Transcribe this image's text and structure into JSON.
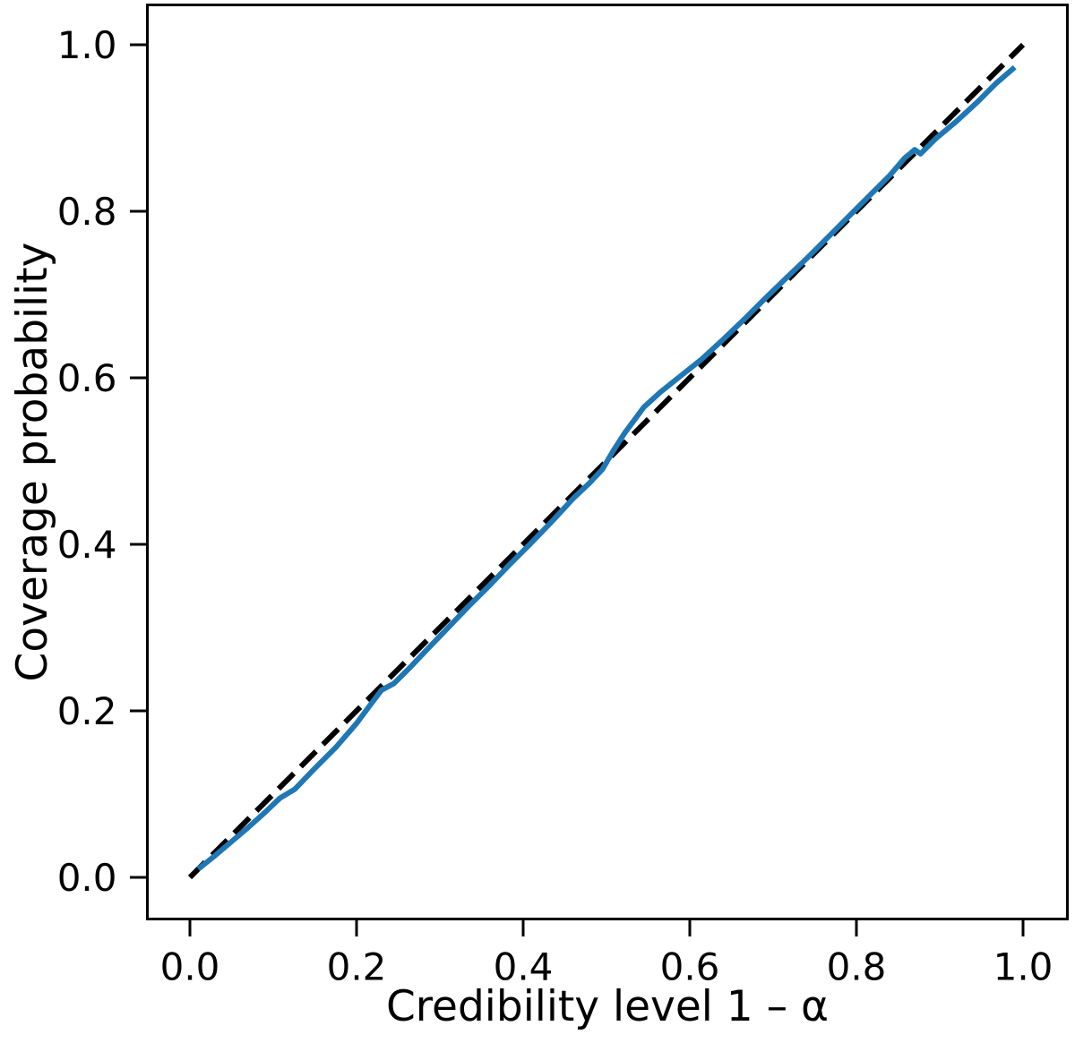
{
  "figure": {
    "background": "#ffffff",
    "axis_color": "#000000",
    "text_color": "#000000"
  },
  "chart_data": {
    "type": "line",
    "title": "",
    "xlabel": "Credibility level 1 – α",
    "ylabel": "Coverage probability",
    "xlim": [
      0.0,
      1.0
    ],
    "ylim": [
      0.0,
      1.0
    ],
    "grid": false,
    "legend": "none",
    "xticks": [
      {
        "value": 0.0,
        "label": "0.0"
      },
      {
        "value": 0.2,
        "label": "0.2"
      },
      {
        "value": 0.4,
        "label": "0.4"
      },
      {
        "value": 0.6,
        "label": "0.6"
      },
      {
        "value": 0.8,
        "label": "0.8"
      },
      {
        "value": 1.0,
        "label": "1.0"
      }
    ],
    "yticks": [
      {
        "value": 0.0,
        "label": "0.0"
      },
      {
        "value": 0.2,
        "label": "0.2"
      },
      {
        "value": 0.4,
        "label": "0.4"
      },
      {
        "value": 0.6,
        "label": "0.6"
      },
      {
        "value": 0.8,
        "label": "0.8"
      },
      {
        "value": 1.0,
        "label": "1.0"
      }
    ],
    "series": [
      {
        "name": "ideal-calibration-diagonal",
        "style": "dashed",
        "color": "#000000",
        "x": [
          0.0,
          1.0
        ],
        "y": [
          0.0,
          1.0
        ]
      },
      {
        "name": "empirical-coverage",
        "style": "solid",
        "color": "#1f77b4",
        "x": [
          0.01,
          0.03,
          0.05,
          0.07,
          0.09,
          0.108,
          0.126,
          0.15,
          0.175,
          0.2,
          0.218,
          0.23,
          0.245,
          0.265,
          0.285,
          0.31,
          0.335,
          0.36,
          0.385,
          0.41,
          0.435,
          0.46,
          0.48,
          0.495,
          0.508,
          0.522,
          0.545,
          0.565,
          0.59,
          0.615,
          0.64,
          0.665,
          0.69,
          0.715,
          0.74,
          0.765,
          0.79,
          0.815,
          0.84,
          0.858,
          0.87,
          0.877,
          0.895,
          0.92,
          0.945,
          0.968,
          0.99
        ],
        "y": [
          0.01,
          0.026,
          0.043,
          0.06,
          0.078,
          0.095,
          0.106,
          0.131,
          0.156,
          0.185,
          0.209,
          0.225,
          0.233,
          0.253,
          0.274,
          0.3,
          0.326,
          0.351,
          0.377,
          0.402,
          0.428,
          0.455,
          0.474,
          0.49,
          0.512,
          0.534,
          0.565,
          0.583,
          0.603,
          0.623,
          0.646,
          0.67,
          0.695,
          0.719,
          0.743,
          0.768,
          0.793,
          0.818,
          0.843,
          0.864,
          0.874,
          0.869,
          0.887,
          0.908,
          0.931,
          0.954,
          0.973
        ]
      }
    ]
  }
}
